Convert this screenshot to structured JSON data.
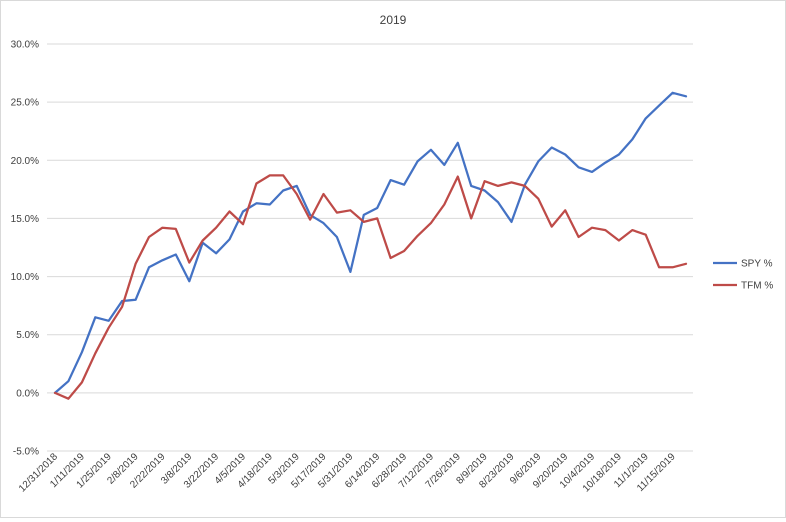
{
  "chart_data": {
    "type": "line",
    "title": "2019",
    "xlabel": "",
    "ylabel": "",
    "ylim": [
      -5,
      30
    ],
    "y_ticks": [
      "-5.0%",
      "0.0%",
      "5.0%",
      "10.0%",
      "15.0%",
      "20.0%",
      "25.0%",
      "30.0%"
    ],
    "y_tick_values": [
      -5,
      0,
      5,
      10,
      15,
      20,
      25,
      30
    ],
    "x_tick_labels": [
      "12/31/2018",
      "1/11/2019",
      "1/25/2019",
      "2/8/2019",
      "2/22/2019",
      "3/8/2019",
      "3/22/2019",
      "4/5/2019",
      "4/18/2019",
      "5/3/2019",
      "5/17/2019",
      "5/31/2019",
      "6/14/2019",
      "6/28/2019",
      "7/12/2019",
      "7/26/2019",
      "8/9/2019",
      "8/23/2019",
      "9/6/2019",
      "9/20/2019",
      "10/4/2019",
      "10/18/2019",
      "11/1/2019",
      "11/15/2019"
    ],
    "grid": "horizontal",
    "legend_position": "right",
    "series": [
      {
        "name": "SPY %",
        "color": "#4472c4",
        "values": [
          0.0,
          1.0,
          3.5,
          6.5,
          6.2,
          7.9,
          8.0,
          10.8,
          11.4,
          11.9,
          9.6,
          12.9,
          12.0,
          13.2,
          15.6,
          16.3,
          16.2,
          17.4,
          17.8,
          15.3,
          14.6,
          13.4,
          10.4,
          15.3,
          15.9,
          18.3,
          17.9,
          19.9,
          20.9,
          19.6,
          21.5,
          17.8,
          17.4,
          16.4,
          14.7,
          17.9,
          19.9,
          21.1,
          20.5,
          19.4,
          19.0,
          19.8,
          20.5,
          21.8,
          23.6,
          24.7,
          25.8,
          25.5
        ]
      },
      {
        "name": "TFM %",
        "color": "#be4b48",
        "values": [
          0.0,
          -0.5,
          0.9,
          3.4,
          5.6,
          7.4,
          11.1,
          13.4,
          14.2,
          14.1,
          11.2,
          13.1,
          14.2,
          15.6,
          14.5,
          18.0,
          18.7,
          18.7,
          17.1,
          14.9,
          17.1,
          15.5,
          15.7,
          14.7,
          15.0,
          11.6,
          12.2,
          13.5,
          14.6,
          16.2,
          18.6,
          15.0,
          18.2,
          17.8,
          18.1,
          17.8,
          16.7,
          14.3,
          15.7,
          13.4,
          14.2,
          14.0,
          13.1,
          14.0,
          13.6,
          10.8,
          10.8,
          11.1
        ]
      }
    ]
  }
}
